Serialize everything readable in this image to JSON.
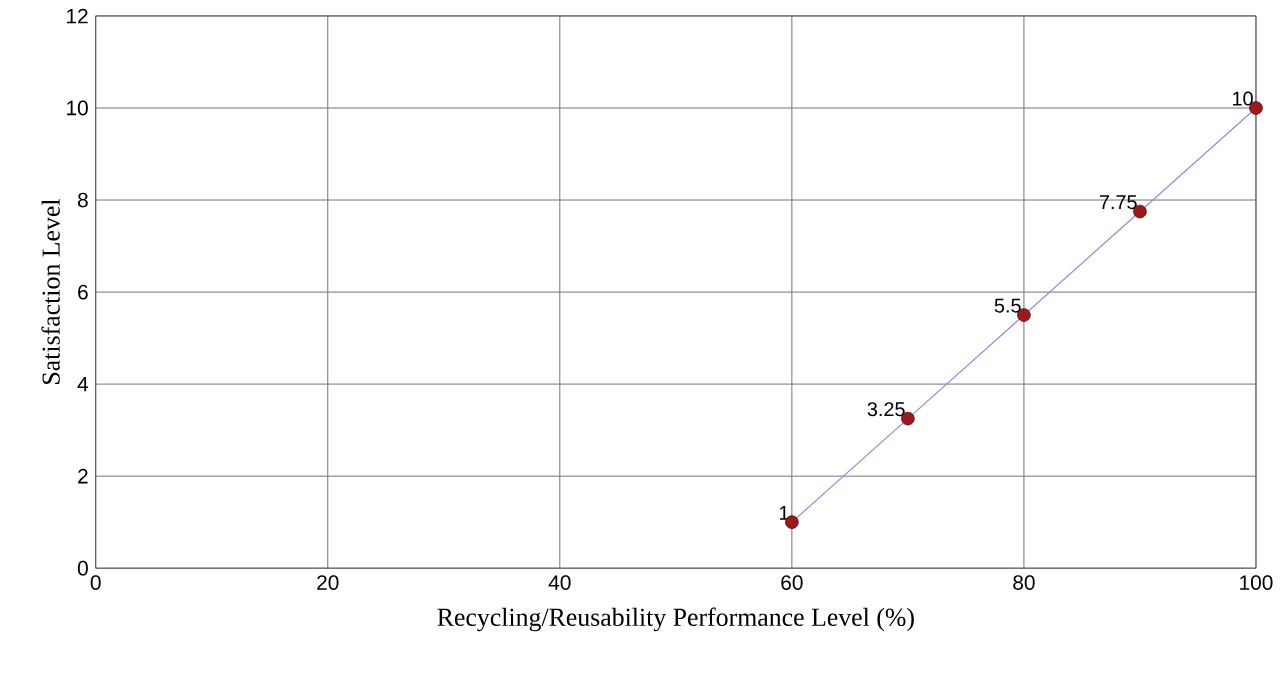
{
  "chart_data": {
    "type": "line",
    "xlabel": "Recycling/Reusability Performance Level (%)",
    "ylabel": "Satisfaction Level",
    "x": [
      60,
      70,
      80,
      90,
      100
    ],
    "series": [
      {
        "color": "#8c8cf0",
        "values": [
          1,
          3.25,
          5.5,
          7.75,
          10
        ]
      },
      {
        "type": "scatter",
        "color": "#9e1a1a",
        "marker": "circle",
        "values": [
          1,
          3.25,
          5.5,
          7.75,
          10
        ],
        "value_labels": [
          "1",
          "3.25",
          "5.5",
          "7.75",
          "10"
        ]
      }
    ],
    "xlim": [
      0,
      100
    ],
    "xticks": [
      0,
      20,
      40,
      60,
      80,
      100
    ],
    "ylim": [
      0,
      12
    ],
    "yticks": [
      0,
      2,
      4,
      6,
      8,
      10,
      12
    ],
    "grid": true
  }
}
